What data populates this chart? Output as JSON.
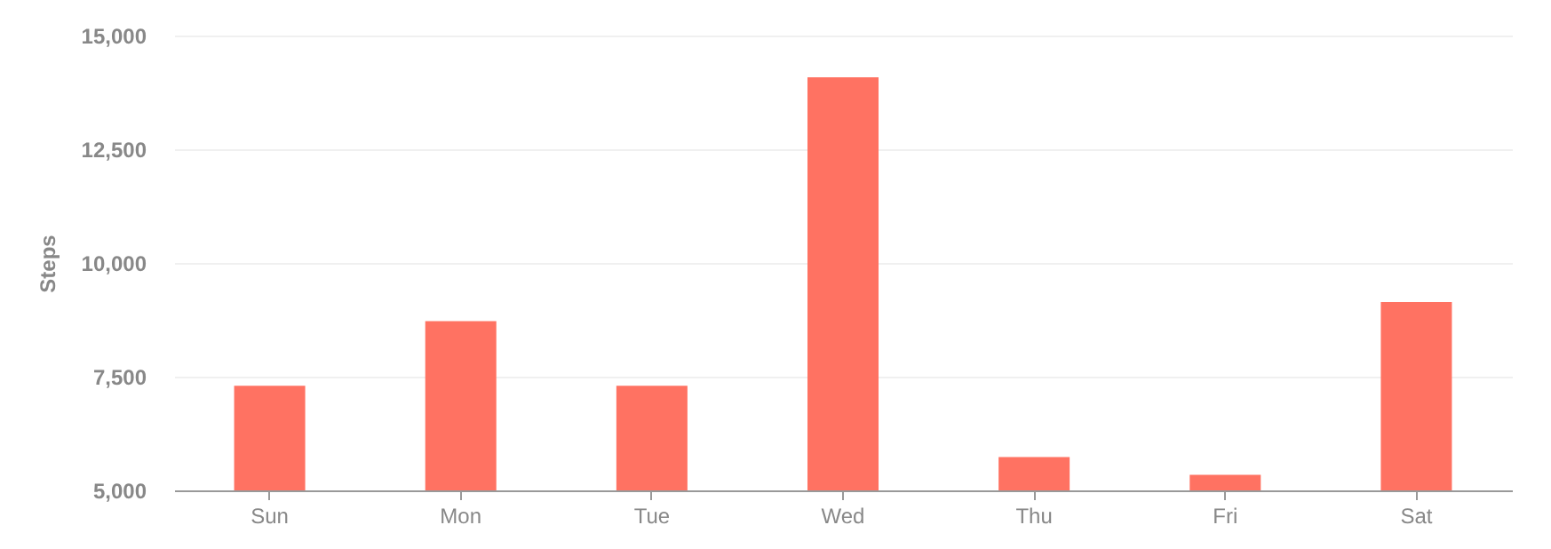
{
  "chart_data": {
    "type": "bar",
    "ylabel": "Steps",
    "categories": [
      "Sun",
      "Mon",
      "Tue",
      "Wed",
      "Thu",
      "Fri",
      "Sat"
    ],
    "values": [
      7300,
      8720,
      7300,
      14080,
      5730,
      5340,
      9140
    ],
    "color": "#ff7262",
    "ylim": [
      5000,
      15000
    ],
    "yticks": [
      {
        "value": 5000,
        "label": "5,000"
      },
      {
        "value": 7500,
        "label": "7,500"
      },
      {
        "value": 10000,
        "label": "10,000"
      },
      {
        "value": 12500,
        "label": "12,500"
      },
      {
        "value": 15000,
        "label": "15,000"
      }
    ],
    "grid": "y"
  }
}
